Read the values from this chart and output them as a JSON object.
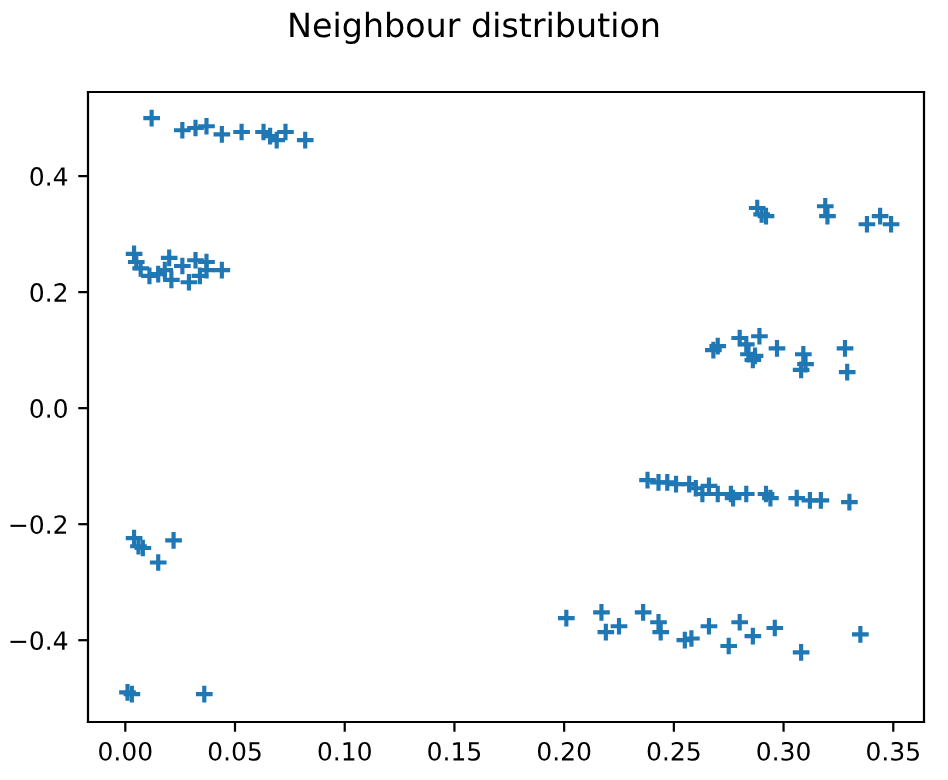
{
  "chart_data": {
    "type": "scatter",
    "title": "Neighbour distribution",
    "marker": "cross",
    "grid": false,
    "xlim": [
      -0.017,
      0.364
    ],
    "ylim": [
      -0.541,
      0.545
    ],
    "xticks": [
      {
        "value": 0,
        "label": "0.00"
      },
      {
        "value": 0.05,
        "label": "0.05"
      },
      {
        "value": 0.1,
        "label": "0.10"
      },
      {
        "value": 0.15,
        "label": "0.15"
      },
      {
        "value": 0.2,
        "label": "0.20"
      },
      {
        "value": 0.25,
        "label": "0.25"
      },
      {
        "value": 0.3,
        "label": "0.30"
      },
      {
        "value": 0.35,
        "label": "0.35"
      }
    ],
    "yticks": [
      {
        "value": -0.4,
        "label": "−0.4"
      },
      {
        "value": -0.2,
        "label": "−0.2"
      },
      {
        "value": 0,
        "label": "0.0"
      },
      {
        "value": 0.2,
        "label": "0.2"
      },
      {
        "value": 0.4,
        "label": "0.4"
      }
    ],
    "series": [
      {
        "color": "#1f77b4",
        "x": [
          0.012,
          0.026,
          0.032,
          0.037,
          0.044,
          0.053,
          0.063,
          0.066,
          0.069,
          0.073,
          0.082,
          0.004,
          0.005,
          0.007,
          0.011,
          0.015,
          0.018,
          0.02,
          0.021,
          0.026,
          0.029,
          0.032,
          0.034,
          0.037,
          0.037,
          0.044,
          0.288,
          0.29,
          0.292,
          0.319,
          0.32,
          0.338,
          0.344,
          0.349,
          0.268,
          0.27,
          0.28,
          0.283,
          0.284,
          0.286,
          0.287,
          0.289,
          0.297,
          0.309,
          0.31,
          0.308,
          0.328,
          0.329,
          0.238,
          0.243,
          0.247,
          0.251,
          0.257,
          0.26,
          0.263,
          0.266,
          0.27,
          0.276,
          0.277,
          0.283,
          0.292,
          0.294,
          0.306,
          0.312,
          0.317,
          0.33,
          0.004,
          0.006,
          0.008,
          0.015,
          0.022,
          0.001,
          0.003,
          0.036,
          0.201,
          0.217,
          0.219,
          0.225,
          0.236,
          0.243,
          0.244,
          0.255,
          0.258,
          0.266,
          0.275,
          0.28,
          0.286,
          0.296,
          0.308,
          0.335
        ],
        "values": [
          0.5,
          0.479,
          0.483,
          0.486,
          0.472,
          0.476,
          0.476,
          0.469,
          0.462,
          0.476,
          0.462,
          0.266,
          0.252,
          0.241,
          0.228,
          0.231,
          0.238,
          0.259,
          0.221,
          0.245,
          0.217,
          0.255,
          0.228,
          0.252,
          0.238,
          0.238,
          0.345,
          0.334,
          0.331,
          0.348,
          0.331,
          0.317,
          0.331,
          0.317,
          0.1,
          0.107,
          0.121,
          0.11,
          0.093,
          0.083,
          0.09,
          0.124,
          0.103,
          0.093,
          0.076,
          0.066,
          0.103,
          0.062,
          -0.124,
          -0.128,
          -0.128,
          -0.131,
          -0.131,
          -0.138,
          -0.148,
          -0.134,
          -0.148,
          -0.148,
          -0.155,
          -0.148,
          -0.148,
          -0.155,
          -0.155,
          -0.159,
          -0.159,
          -0.162,
          -0.224,
          -0.238,
          -0.241,
          -0.266,
          -0.228,
          -0.49,
          -0.493,
          -0.493,
          -0.362,
          -0.352,
          -0.386,
          -0.376,
          -0.352,
          -0.369,
          -0.386,
          -0.4,
          -0.397,
          -0.376,
          -0.41,
          -0.369,
          -0.393,
          -0.379,
          -0.421,
          -0.39
        ]
      }
    ]
  }
}
